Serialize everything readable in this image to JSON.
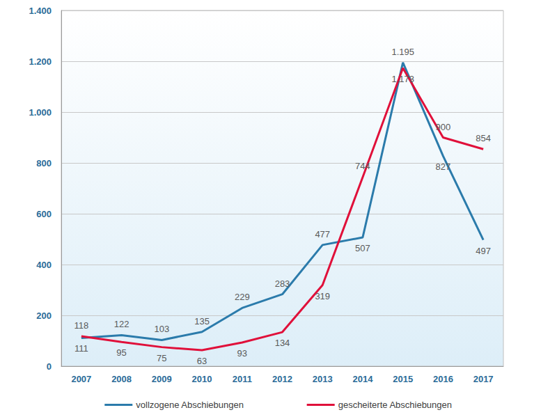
{
  "chart_data": {
    "type": "line",
    "categories": [
      "2007",
      "2008",
      "2009",
      "2010",
      "2011",
      "2012",
      "2013",
      "2014",
      "2015",
      "2016",
      "2017"
    ],
    "series": [
      {
        "name": "vollzogene Abschiebungen",
        "color": "#2b7bab",
        "values": [
          111,
          122,
          103,
          135,
          229,
          283,
          477,
          507,
          1195,
          827,
          497
        ],
        "value_labels": [
          "111",
          "122",
          "103",
          "135",
          "229",
          "283",
          "477",
          "507",
          "1.195",
          "827",
          "497"
        ]
      },
      {
        "name": "gescheiterte Abschiebungen",
        "color": "#e0103a",
        "values": [
          118,
          95,
          75,
          63,
          93,
          134,
          319,
          744,
          1173,
          900,
          854
        ],
        "value_labels": [
          "118",
          "95",
          "75",
          "63",
          "93",
          "134",
          "319",
          "744",
          "1.173",
          "900",
          "854"
        ]
      }
    ],
    "ylim": [
      0,
      1400
    ],
    "yticks": [
      0,
      200,
      400,
      600,
      800,
      {
        "value": 1000,
        "label": "1.000"
      },
      {
        "value": 1200,
        "label": "1.200"
      },
      {
        "value": 1400,
        "label": "1.400"
      }
    ],
    "grid": true,
    "legend": "bottom",
    "data_labels": true
  }
}
